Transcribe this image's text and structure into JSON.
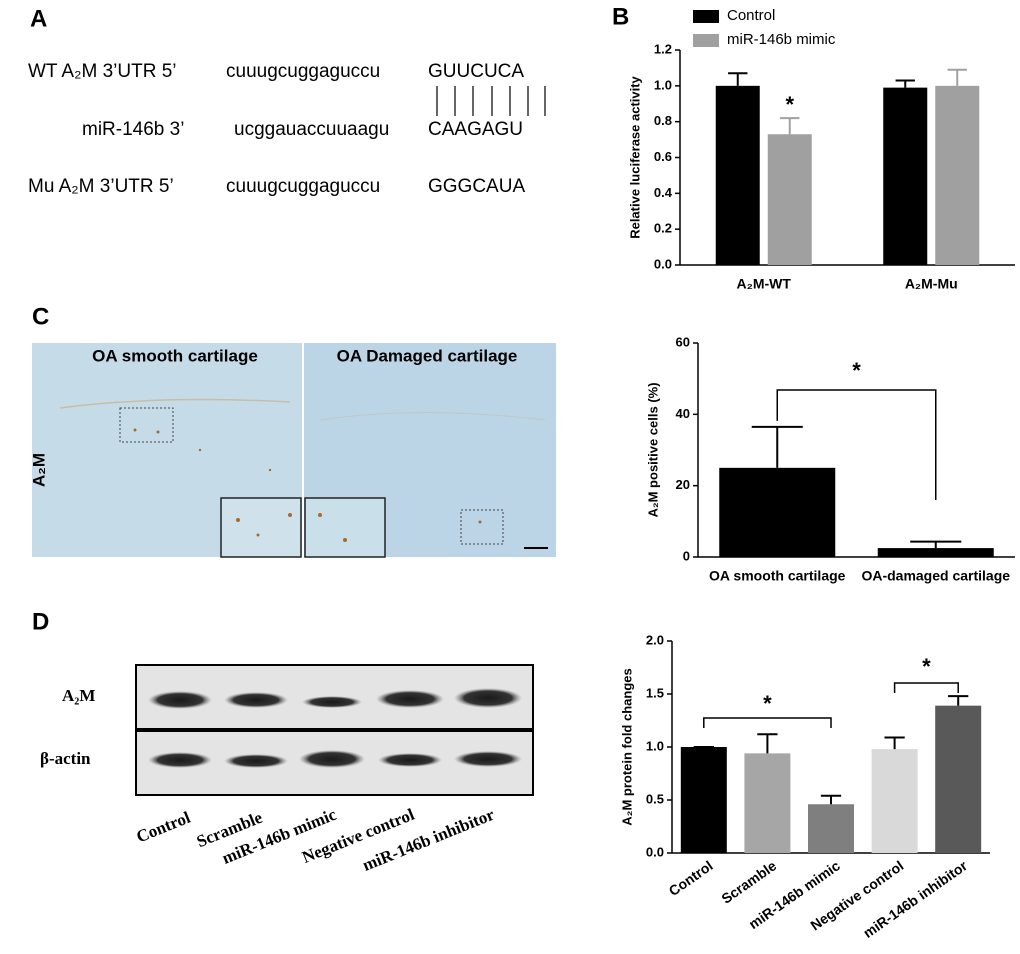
{
  "panel_labels": [
    "A",
    "B",
    "C",
    "D"
  ],
  "sequences": {
    "rows": [
      {
        "name": "WT A₂M 3’UTR 5’",
        "seq": "cuuugcuggaguccu",
        "site": "GUUCUCA"
      },
      {
        "name": "miR-146b 3’",
        "seq": "ucggauaccuuaagu",
        "site": "CAAGAGU"
      },
      {
        "name": "Mu A₂M 3’UTR 5’",
        "seq": "cuuugcuggaguccu",
        "site": "GGGCAUA"
      }
    ]
  },
  "staining": {
    "titles": [
      "OA smooth cartilage",
      "OA Damaged cartilage"
    ],
    "row_label": "A₂M"
  },
  "blot": {
    "rows": [
      "A₂M",
      "β-actin"
    ],
    "lanes": [
      "Control",
      "Scramble",
      "miR-146b mimic",
      "Negative control",
      "miR-146b inhibitor"
    ]
  },
  "chart_data": [
    {
      "type": "grouped_bar",
      "ylabel": "Relative luciferase activity",
      "categories": [
        "A₂M-WT",
        "A₂M-Mu"
      ],
      "series": [
        {
          "name": "Control",
          "color": "#000000",
          "values": [
            1.0,
            0.99
          ],
          "errors": [
            0.07,
            0.04
          ]
        },
        {
          "name": "miR-146b mimic",
          "color": "#a0a0a0",
          "values": [
            0.73,
            1.0
          ],
          "errors": [
            0.09,
            0.09
          ]
        }
      ],
      "ylim": [
        0,
        1.2
      ],
      "yticks": [
        {
          "value": 0,
          "label": "0.0"
        },
        {
          "value": 0.2,
          "label": "0.2"
        },
        {
          "value": 0.4,
          "label": "0.4"
        },
        {
          "value": 0.6,
          "label": "0.6"
        },
        {
          "value": 0.8,
          "label": "0.8"
        },
        {
          "value": 1.0,
          "label": "1.0"
        },
        {
          "value": 1.2,
          "label": "1.2"
        }
      ],
      "annotations": [
        "*"
      ]
    },
    {
      "type": "bar",
      "ylabel": "A₂M positive cells (%)",
      "categories": [
        "OA smooth cartilage",
        "OA-damaged cartilage"
      ],
      "values": [
        25,
        2.5
      ],
      "errors": [
        11.5,
        1.8
      ],
      "color": "#000000",
      "ylim": [
        0,
        60
      ],
      "yticks": [
        0,
        20,
        40,
        60
      ],
      "annotations": [
        "*"
      ]
    },
    {
      "type": "bar",
      "ylabel": "A₂M protein fold changes",
      "categories": [
        "Control",
        "Scramble",
        "miR-146b mimic",
        "Negative control",
        "miR-146b inhibitor"
      ],
      "values": [
        1.0,
        0.94,
        0.46,
        0.98,
        1.39
      ],
      "errors": [
        0,
        0.18,
        0.08,
        0.11,
        0.09
      ],
      "colors": [
        "#000000",
        "#a6a6a6",
        "#7f7f7f",
        "#d9d9d9",
        "#595959"
      ],
      "ylim": [
        0,
        2.0
      ],
      "yticks": [
        {
          "value": 0,
          "label": "0.0"
        },
        {
          "value": 0.5,
          "label": "0.5"
        },
        {
          "value": 1.0,
          "label": "1.0"
        },
        {
          "value": 1.5,
          "label": "1.5"
        },
        {
          "value": 2.0,
          "label": "2.0"
        }
      ],
      "annotations": [
        "*",
        "*"
      ]
    }
  ]
}
